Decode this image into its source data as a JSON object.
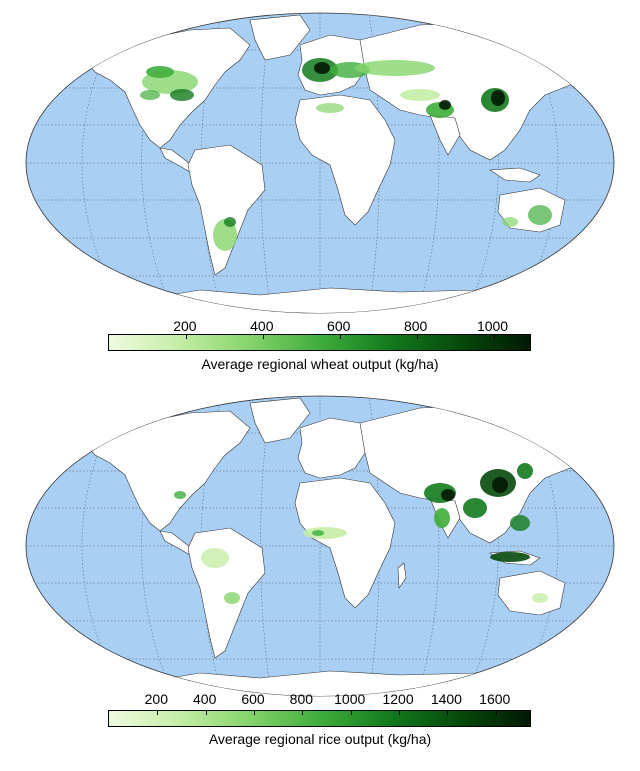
{
  "maps": [
    {
      "id": "wheat",
      "colorbar": {
        "ticks": [
          "200",
          "400",
          "600",
          "800",
          "1000"
        ],
        "tick_values": [
          200,
          400,
          600,
          800,
          1000
        ],
        "range": [
          0,
          1100
        ],
        "colors": [
          "#f0fbe0",
          "#c5eda6",
          "#86d46b",
          "#3fae3c",
          "#137a1d",
          "#064a0b",
          "#021a03"
        ],
        "caption": "Average regional wheat output (kg/ha)"
      }
    },
    {
      "id": "rice",
      "colorbar": {
        "ticks": [
          "200",
          "400",
          "600",
          "800",
          "1000",
          "1200",
          "1400",
          "1600"
        ],
        "tick_values": [
          200,
          400,
          600,
          800,
          1000,
          1200,
          1400,
          1600
        ],
        "range": [
          0,
          1750
        ],
        "colors": [
          "#f0fbe0",
          "#c5eda6",
          "#86d46b",
          "#3fae3c",
          "#137a1d",
          "#064a0b",
          "#021a03"
        ],
        "caption": "Average regional rice output (kg/ha)"
      }
    }
  ],
  "colors": {
    "ocean": "#a9cff5",
    "land": "#ffffff",
    "coast": "#333333",
    "graticule": "#555555"
  }
}
